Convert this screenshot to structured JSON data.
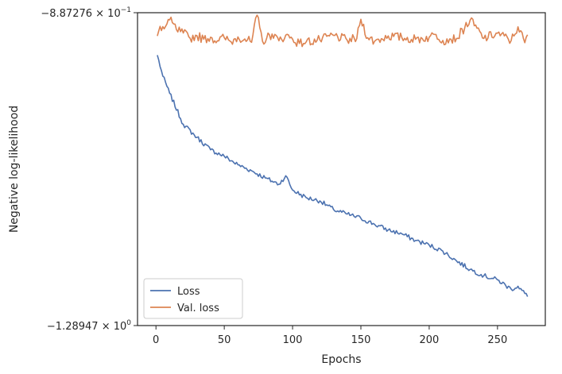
{
  "chart_data": {
    "type": "line",
    "xlabel": "Epochs",
    "ylabel": "Negative log-likelihood",
    "xlim": [
      -13.5,
      285
    ],
    "ylim": [
      -1.28947,
      -0.887276
    ],
    "yscale": "symlog",
    "x_ticks": [
      0,
      50,
      100,
      150,
      200,
      250
    ],
    "x_tick_labels": [
      "0",
      "50",
      "100",
      "150",
      "200",
      "250"
    ],
    "y_ticks": [
      -0.887276,
      -1.28947
    ],
    "y_tick_labels": [
      {
        "base": "−8.87276 × 10",
        "exp": "−1"
      },
      {
        "base": "−1.28947 × 10",
        "exp": "0"
      }
    ],
    "grid": false,
    "legend": "lower-left",
    "series": [
      {
        "name": "Loss",
        "color": "#4c72b0",
        "x": [
          1,
          5,
          10,
          20,
          30,
          40,
          50,
          60,
          70,
          80,
          90,
          95,
          100,
          110,
          120,
          130,
          140,
          150,
          160,
          170,
          180,
          190,
          200,
          210,
          220,
          230,
          240,
          250,
          260,
          265,
          272
        ],
        "y": [
          -0.9418,
          -0.9688,
          -0.9908,
          -1.0308,
          -1.0476,
          -1.0635,
          -1.0718,
          -1.0828,
          -1.0905,
          -1.0997,
          -1.1078,
          -1.0969,
          -1.1153,
          -1.1251,
          -1.1292,
          -1.1403,
          -1.1462,
          -1.1516,
          -1.1593,
          -1.1666,
          -1.1715,
          -1.1801,
          -1.186,
          -1.1938,
          -1.2063,
          -1.2173,
          -1.2254,
          -1.2307,
          -1.2426,
          -1.2389,
          -1.2523
        ]
      },
      {
        "name": "Val. loss",
        "color": "#dd8452",
        "x": [
          1,
          3,
          6,
          10,
          15,
          20,
          25,
          30,
          35,
          40,
          45,
          50,
          55,
          60,
          65,
          70,
          74,
          78,
          85,
          90,
          95,
          100,
          105,
          110,
          120,
          130,
          140,
          147,
          150,
          155,
          160,
          170,
          180,
          190,
          200,
          205,
          210,
          215,
          220,
          230,
          240,
          250,
          260,
          265,
          270,
          272
        ],
        "y": [
          -0.9172,
          -0.9048,
          -0.908,
          -0.8964,
          -0.9091,
          -0.9134,
          -0.9201,
          -0.9168,
          -0.9213,
          -0.9188,
          -0.9233,
          -0.9194,
          -0.9247,
          -0.9184,
          -0.921,
          -0.9253,
          -0.8904,
          -0.924,
          -0.9147,
          -0.9234,
          -0.9161,
          -0.9212,
          -0.9268,
          -0.9247,
          -0.9223,
          -0.9164,
          -0.9227,
          -0.9205,
          -0.8957,
          -0.9194,
          -0.9241,
          -0.9171,
          -0.9193,
          -0.9215,
          -0.9188,
          -0.9153,
          -0.9229,
          -0.921,
          -0.9205,
          -0.8967,
          -0.9204,
          -0.9136,
          -0.9232,
          -0.9054,
          -0.9258,
          -0.9156
        ]
      }
    ]
  }
}
